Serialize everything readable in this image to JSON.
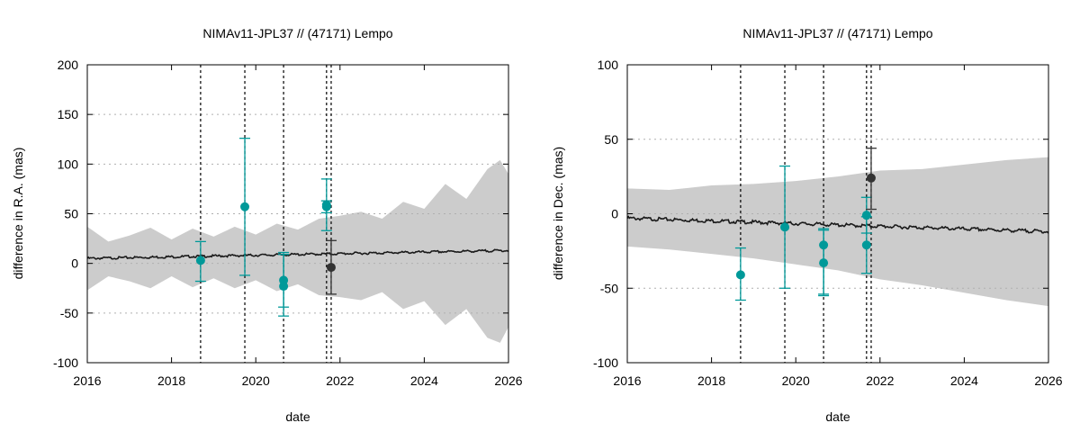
{
  "colors": {
    "observation": "#009999",
    "highlight": "#333333",
    "band": "#cccccc",
    "model_line": "#1a1a1a"
  },
  "chart_data": [
    {
      "type": "scatter",
      "title": "NIMAv11-JPL37 // (47171) Lempo",
      "xlabel": "date",
      "ylabel": "difference in R.A. (mas)",
      "xlim": [
        2016,
        2026
      ],
      "ylim": [
        -100,
        200
      ],
      "xticks": [
        "2016",
        "2018",
        "2020",
        "2022",
        "2024",
        "2026"
      ],
      "yticks": [
        "-100",
        "-50",
        "0",
        "50",
        "100",
        "150",
        "200"
      ],
      "grid": "horizontal dotted",
      "vlines": [
        2018.69,
        2019.74,
        2020.66,
        2021.68,
        2021.79
      ],
      "band": {
        "x": [
          2016,
          2016.5,
          2017,
          2017.5,
          2018,
          2018.5,
          2019,
          2019.5,
          2020,
          2020.5,
          2021,
          2021.5,
          2022,
          2022.5,
          2023,
          2023.5,
          2024,
          2024.5,
          2025,
          2025.5,
          2025.8,
          2026
        ],
        "upper": [
          37,
          22,
          28,
          36,
          24,
          35,
          27,
          37,
          29,
          40,
          34,
          45,
          48,
          52,
          45,
          62,
          55,
          80,
          65,
          95,
          104,
          90
        ],
        "lower": [
          -27,
          -13,
          -18,
          -25,
          -13,
          -24,
          -15,
          -25,
          -17,
          -28,
          -21,
          -32,
          -34,
          -37,
          -29,
          -46,
          -38,
          -62,
          -46,
          -75,
          -80,
          -64
        ]
      },
      "model_line": {
        "x": [
          2016,
          2026
        ],
        "y": [
          5,
          13
        ]
      },
      "points": [
        {
          "x": 2018.69,
          "y": 3,
          "err_low": -18,
          "err_high": 22,
          "group": "observation"
        },
        {
          "x": 2019.74,
          "y": 57,
          "err_low": -12,
          "err_high": 126,
          "group": "observation"
        },
        {
          "x": 2020.66,
          "y": -17,
          "err_low": -44,
          "err_high": 11,
          "group": "observation"
        },
        {
          "x": 2020.66,
          "y": -23,
          "err_low": -53,
          "err_high": 9,
          "group": "observation"
        },
        {
          "x": 2021.68,
          "y": 59,
          "err_low": 33,
          "err_high": 85,
          "group": "observation"
        },
        {
          "x": 2021.68,
          "y": 57,
          "err_low": 51,
          "err_high": 63,
          "group": "observation"
        },
        {
          "x": 2021.79,
          "y": -4,
          "err_low": -31,
          "err_high": 23,
          "group": "highlight"
        }
      ]
    },
    {
      "type": "scatter",
      "title": "NIMAv11-JPL37 // (47171) Lempo",
      "xlabel": "date",
      "ylabel": "difference in Dec. (mas)",
      "xlim": [
        2016,
        2026
      ],
      "ylim": [
        -100,
        100
      ],
      "xticks": [
        "2016",
        "2018",
        "2020",
        "2022",
        "2024",
        "2026"
      ],
      "yticks": [
        "-100",
        "-50",
        "0",
        "50",
        "100"
      ],
      "grid": "horizontal dotted",
      "vlines": [
        2018.69,
        2019.74,
        2020.66,
        2021.68,
        2021.79
      ],
      "band": {
        "x": [
          2016,
          2017,
          2018,
          2019,
          2020,
          2021,
          2022,
          2023,
          2024,
          2025,
          2026
        ],
        "upper": [
          17,
          16,
          19,
          20,
          22,
          25,
          29,
          30,
          33,
          36,
          38
        ],
        "lower": [
          -22,
          -24,
          -27,
          -30,
          -34,
          -38,
          -44,
          -48,
          -53,
          -58,
          -62
        ]
      },
      "model_line": {
        "x": [
          2016,
          2026
        ],
        "y": [
          -3,
          -12
        ]
      },
      "points": [
        {
          "x": 2018.69,
          "y": -41,
          "err_low": -58,
          "err_high": -23,
          "group": "observation"
        },
        {
          "x": 2019.74,
          "y": -9,
          "err_low": -50,
          "err_high": 32,
          "group": "observation"
        },
        {
          "x": 2020.66,
          "y": -21,
          "err_low": -54,
          "err_high": -10,
          "group": "observation"
        },
        {
          "x": 2020.66,
          "y": -33,
          "err_low": -55,
          "err_high": -11,
          "group": "observation"
        },
        {
          "x": 2021.68,
          "y": -1,
          "err_low": -13,
          "err_high": 11,
          "group": "observation"
        },
        {
          "x": 2021.68,
          "y": -21,
          "err_low": -40,
          "err_high": -2,
          "group": "observation"
        },
        {
          "x": 2021.79,
          "y": 24,
          "err_low": 3,
          "err_high": 44,
          "group": "highlight"
        }
      ]
    }
  ]
}
